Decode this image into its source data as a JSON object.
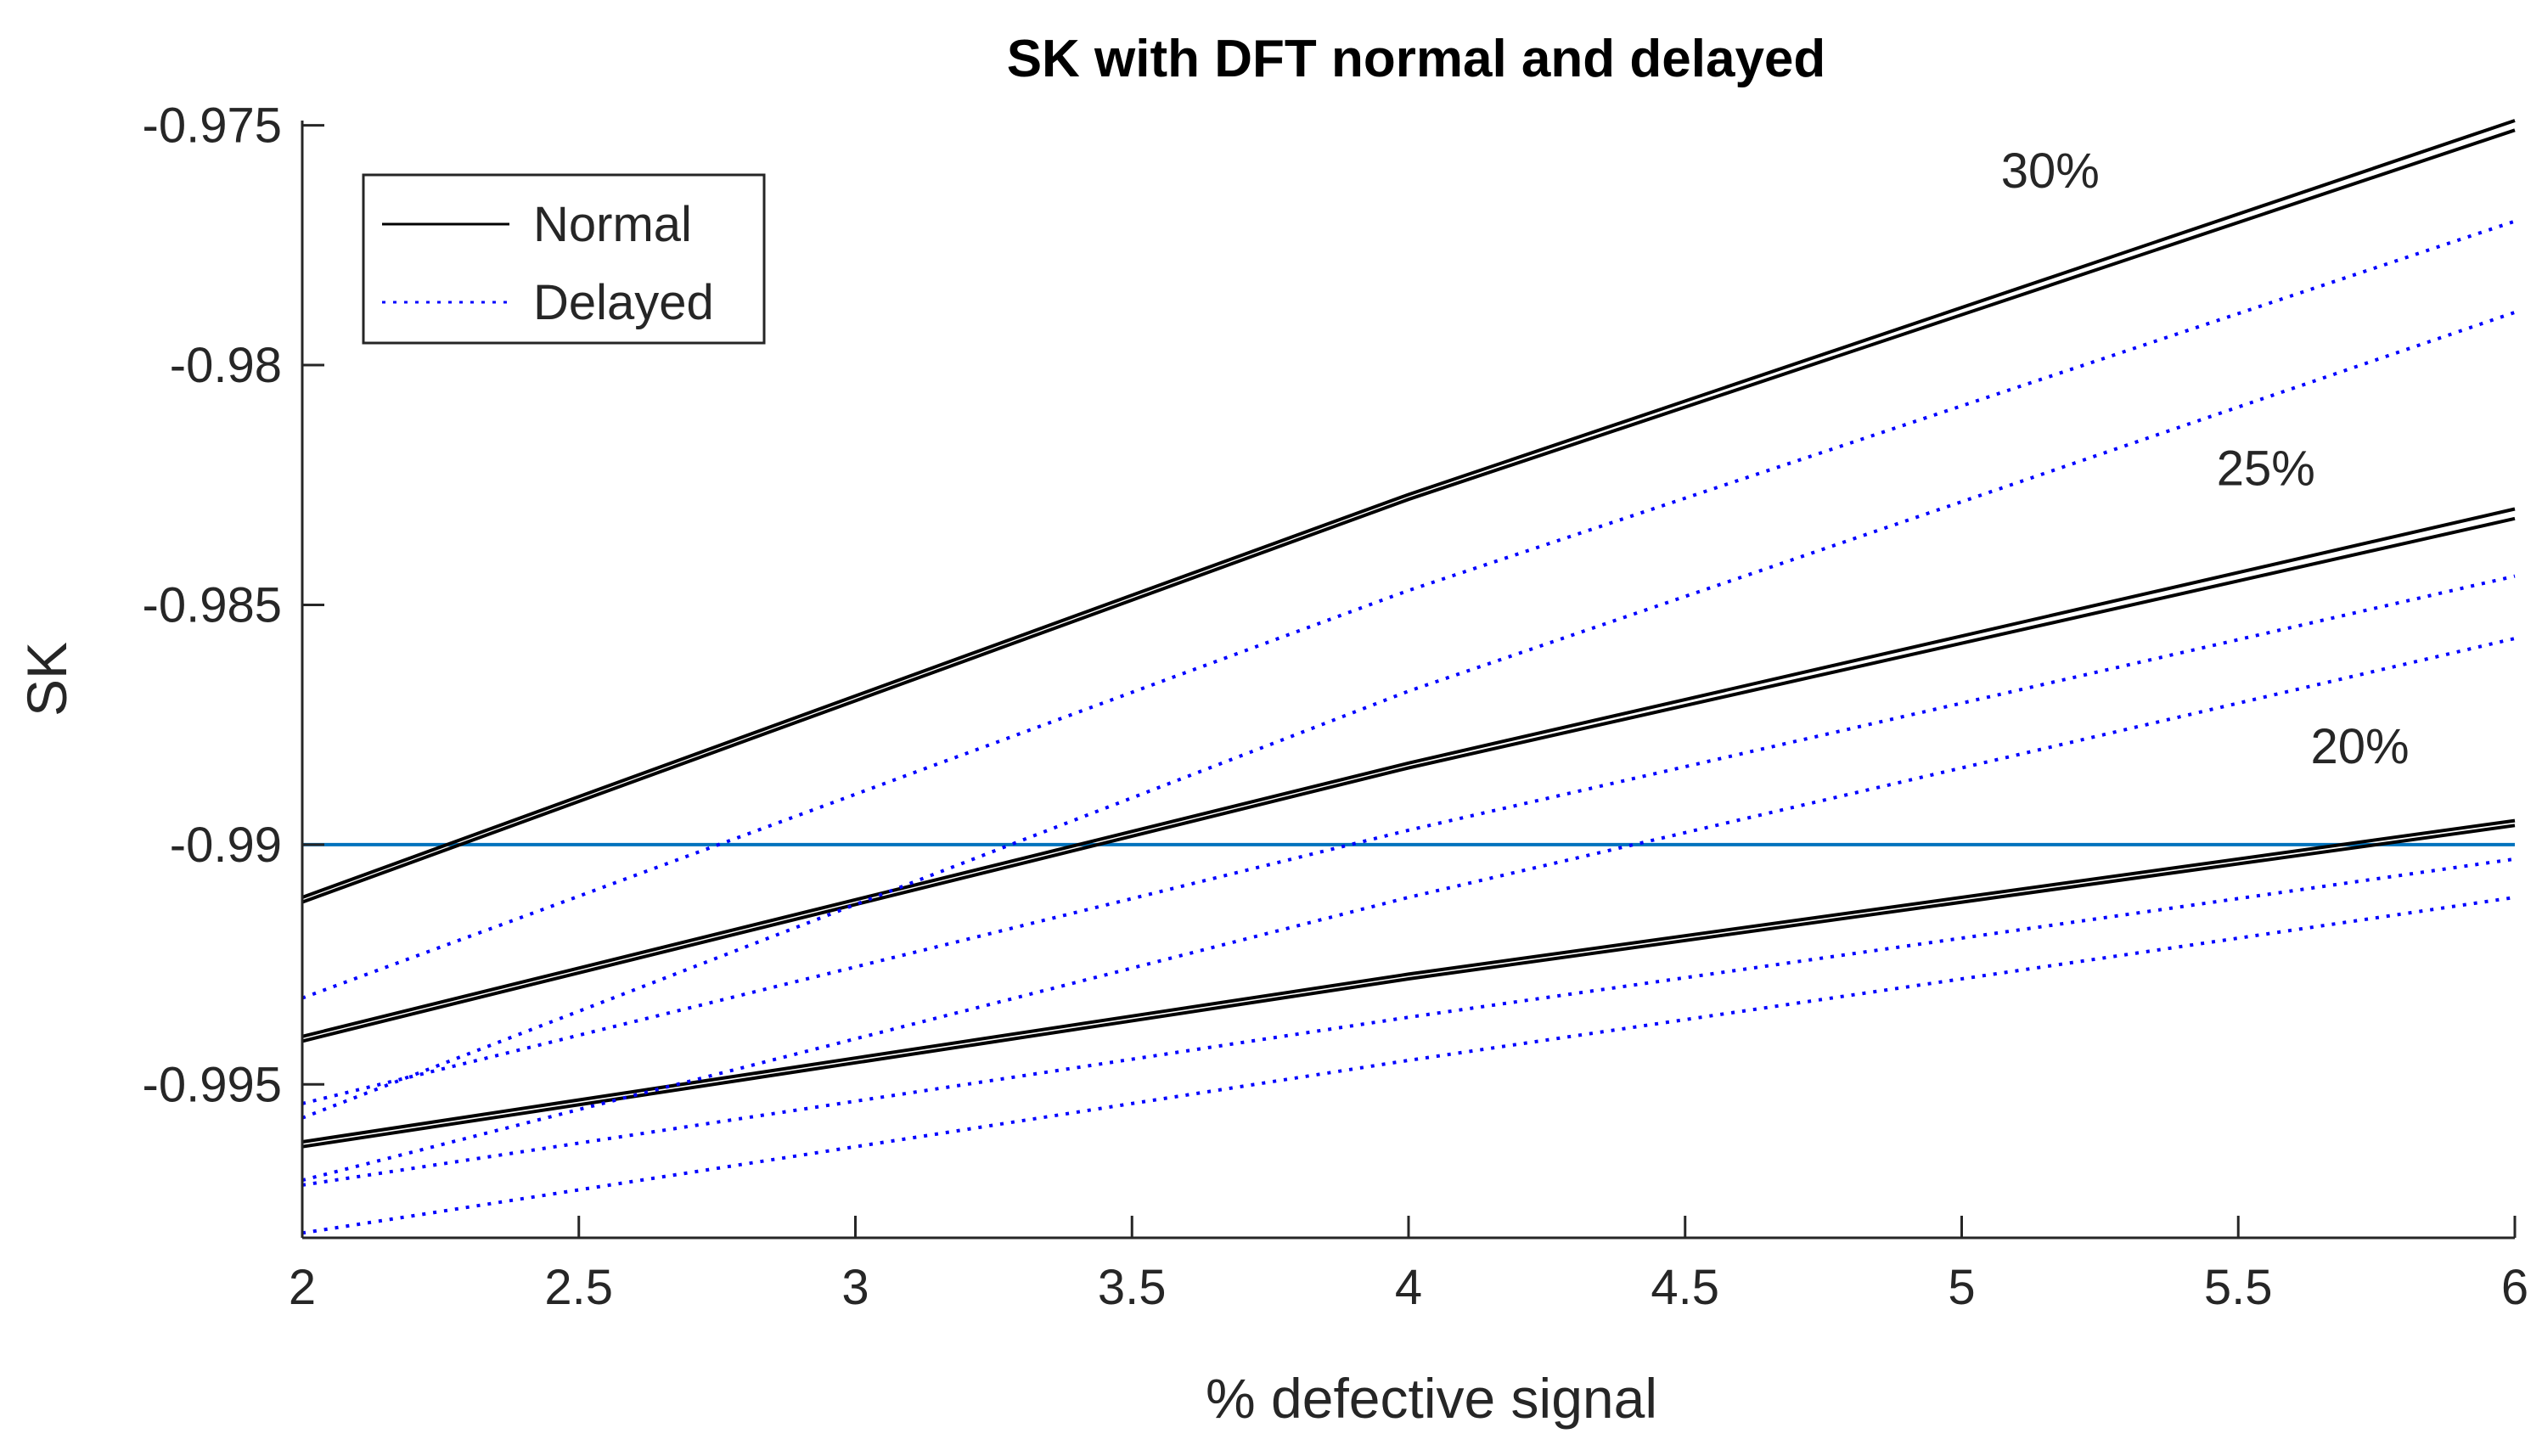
{
  "chart_data": {
    "type": "line",
    "title": "SK with DFT normal and delayed",
    "xlabel": "% defective signal",
    "ylabel": "SK",
    "xlim": [
      2,
      6
    ],
    "ylim": [
      -0.9982,
      -0.9749
    ],
    "x_ticks": [
      2,
      2.5,
      3,
      3.5,
      4,
      4.5,
      5,
      5.5,
      6
    ],
    "x_tick_labels": [
      "2",
      "2.5",
      "3",
      "3.5",
      "4",
      "4.5",
      "5",
      "5.5",
      "6"
    ],
    "y_ticks": [
      -0.975,
      -0.98,
      -0.985,
      -0.99,
      -0.995
    ],
    "y_tick_labels": [
      "-0.975",
      "-0.98",
      "-0.985",
      "-0.99",
      "-0.995"
    ],
    "grid": false,
    "legend": {
      "position": "top-left",
      "entries": [
        {
          "label": "Normal",
          "style": "solid",
          "color": "#000000"
        },
        {
          "label": "Delayed",
          "style": "dotted",
          "color": "#0000ff"
        }
      ]
    },
    "annotations": [
      {
        "text": "30%",
        "x": 5.16,
        "y": -0.9763
      },
      {
        "text": "25%",
        "x": 5.55,
        "y": -0.9825
      },
      {
        "text": "20%",
        "x": 5.72,
        "y": -0.9883
      }
    ],
    "series": [
      {
        "name": "Normal 30% a",
        "group": "Normal",
        "color": "#000000",
        "style": "solid",
        "x": [
          2,
          4,
          6
        ],
        "y": [
          -0.9911,
          -0.9827,
          -0.9749
        ]
      },
      {
        "name": "Normal 30% b",
        "group": "Normal",
        "color": "#000000",
        "style": "solid",
        "x": [
          2,
          4,
          6
        ],
        "y": [
          -0.9912,
          -0.9828,
          -0.9751
        ]
      },
      {
        "name": "Normal 25% a",
        "group": "Normal",
        "color": "#000000",
        "style": "solid",
        "x": [
          2,
          4,
          6
        ],
        "y": [
          -0.994,
          -0.9883,
          -0.983
        ]
      },
      {
        "name": "Normal 25% b",
        "group": "Normal",
        "color": "#000000",
        "style": "solid",
        "x": [
          2,
          4,
          6
        ],
        "y": [
          -0.9941,
          -0.9884,
          -0.9832
        ]
      },
      {
        "name": "Normal 20% a",
        "group": "Normal",
        "color": "#000000",
        "style": "solid",
        "x": [
          2,
          4,
          6
        ],
        "y": [
          -0.9962,
          -0.9927,
          -0.9895
        ]
      },
      {
        "name": "Normal 20% b",
        "group": "Normal",
        "color": "#000000",
        "style": "solid",
        "x": [
          2,
          4,
          6
        ],
        "y": [
          -0.9963,
          -0.9928,
          -0.9896
        ]
      },
      {
        "name": "Delayed 30% a",
        "group": "Delayed",
        "color": "#0000ff",
        "style": "dotted",
        "x": [
          2,
          4,
          6
        ],
        "y": [
          -0.9932,
          -0.9847,
          -0.977
        ]
      },
      {
        "name": "Delayed 30% b",
        "group": "Delayed",
        "color": "#0000ff",
        "style": "dotted",
        "x": [
          2,
          4,
          6
        ],
        "y": [
          -0.9957,
          -0.9868,
          -0.9789
        ]
      },
      {
        "name": "Delayed 25% a",
        "group": "Delayed",
        "color": "#0000ff",
        "style": "dotted",
        "x": [
          2,
          4,
          6
        ],
        "y": [
          -0.9954,
          -0.9897,
          -0.9844
        ]
      },
      {
        "name": "Delayed 25% b",
        "group": "Delayed",
        "color": "#0000ff",
        "style": "dotted",
        "x": [
          2,
          4,
          6
        ],
        "y": [
          -0.997,
          -0.9911,
          -0.9857
        ]
      },
      {
        "name": "Delayed 20% a",
        "group": "Delayed",
        "color": "#0000ff",
        "style": "dotted",
        "x": [
          2,
          4,
          6
        ],
        "y": [
          -0.9971,
          -0.9936,
          -0.9903
        ]
      },
      {
        "name": "Delayed 20% b",
        "group": "Delayed",
        "color": "#0000ff",
        "style": "dotted",
        "x": [
          2,
          4,
          6
        ],
        "y": [
          -0.9981,
          -0.9945,
          -0.9911
        ]
      }
    ],
    "reference_lines": [
      {
        "name": "threshold",
        "orientation": "horizontal",
        "y": -0.99,
        "color": "#0072bd"
      }
    ]
  }
}
